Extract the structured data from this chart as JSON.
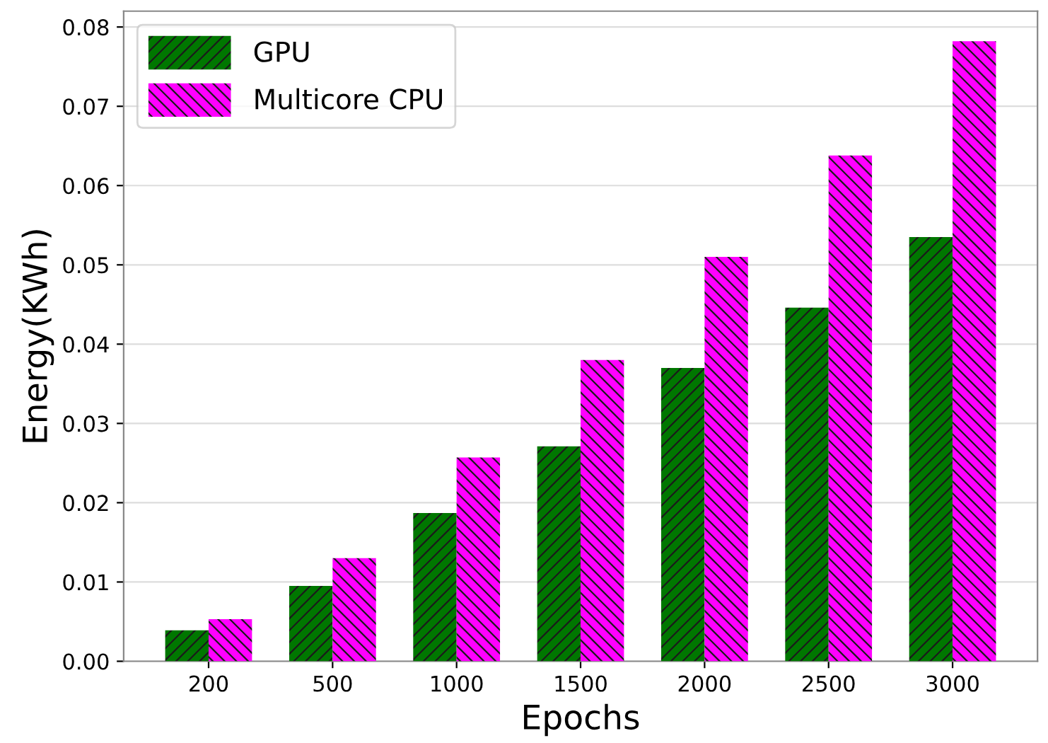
{
  "chart_data": {
    "type": "bar",
    "xlabel": "Epochs",
    "ylabel": "Energy(KWh)",
    "categories": [
      "200",
      "500",
      "1000",
      "1500",
      "2000",
      "2500",
      "3000"
    ],
    "series": [
      {
        "name": "GPU",
        "color": "#007700",
        "values": [
          0.0039,
          0.0095,
          0.0187,
          0.0271,
          0.037,
          0.0446,
          0.0535
        ]
      },
      {
        "name": "Multicore CPU",
        "color": "#ff00ff",
        "values": [
          0.0053,
          0.013,
          0.0257,
          0.038,
          0.051,
          0.0638,
          0.0782
        ]
      }
    ],
    "ylim": [
      0,
      0.082
    ],
    "yticks": [
      {
        "value": 0,
        "label": "0.00"
      },
      {
        "value": 0.01,
        "label": "0.01"
      },
      {
        "value": 0.02,
        "label": "0.02"
      },
      {
        "value": 0.03,
        "label": "0.03"
      },
      {
        "value": 0.04,
        "label": "0.04"
      },
      {
        "value": 0.05,
        "label": "0.05"
      },
      {
        "value": 0.06,
        "label": "0.06"
      },
      {
        "value": 0.07,
        "label": "0.07"
      },
      {
        "value": 0.08,
        "label": "0.08"
      }
    ],
    "grid": "y",
    "legend": "top left"
  }
}
